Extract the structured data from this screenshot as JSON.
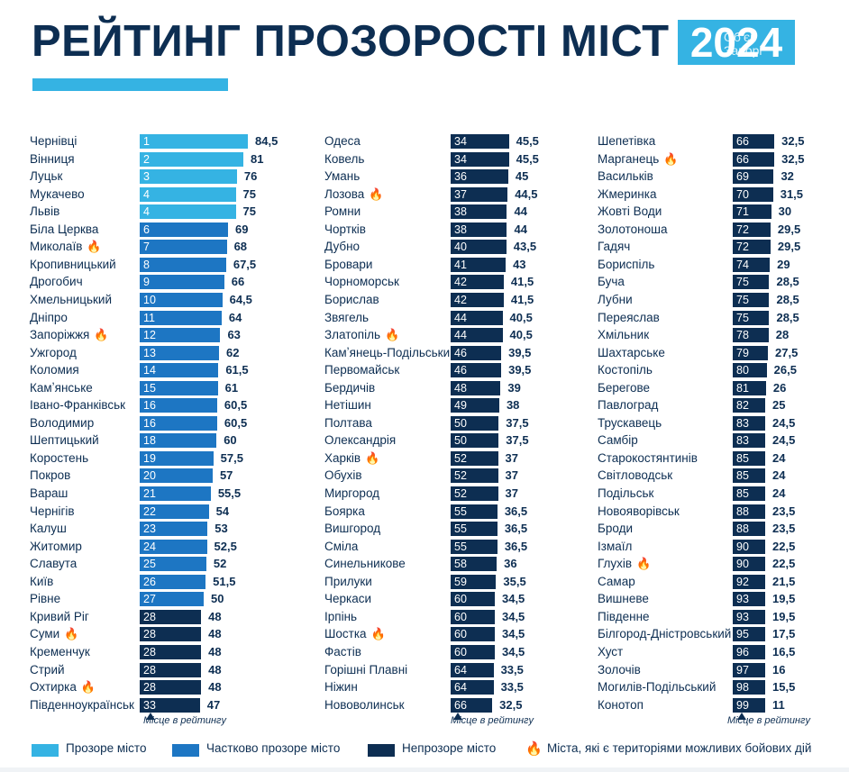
{
  "header": {
    "title": "РЕЙТИНГ ПРОЗОРОСТІ МІСТ",
    "year": "2024",
    "watermark_line1": "Обʼєк",
    "watermark_line2": "Запорі"
  },
  "colors": {
    "transparent": "#35b3e3",
    "partial": "#1d76c3",
    "opaque": "#0d2e52",
    "fire": "#f3a23a"
  },
  "axis_note": "Місце в рейтингу",
  "legend": {
    "transparent": "Прозоре місто",
    "partial": "Частково прозоре місто",
    "opaque": "Непрозоре місто",
    "fire": "Міста, які є територіями можливих бойових дій"
  },
  "chart_data": {
    "type": "bar",
    "value_max": 84.5,
    "columns": [
      [
        {
          "city": "Чернівці",
          "rank": 1,
          "score": "84,5",
          "value": 84.5,
          "cat": "transparent",
          "fire": false
        },
        {
          "city": "Вінниця",
          "rank": 2,
          "score": "81",
          "value": 81,
          "cat": "transparent",
          "fire": false
        },
        {
          "city": "Луцьк",
          "rank": 3,
          "score": "76",
          "value": 76,
          "cat": "transparent",
          "fire": false
        },
        {
          "city": "Мукачево",
          "rank": 4,
          "score": "75",
          "value": 75,
          "cat": "transparent",
          "fire": false
        },
        {
          "city": "Львів",
          "rank": 4,
          "score": "75",
          "value": 75,
          "cat": "transparent",
          "fire": false
        },
        {
          "city": "Біла Церква",
          "rank": 6,
          "score": "69",
          "value": 69,
          "cat": "partial",
          "fire": false
        },
        {
          "city": "Миколаїв",
          "rank": 7,
          "score": "68",
          "value": 68,
          "cat": "partial",
          "fire": true
        },
        {
          "city": "Кропивницький",
          "rank": 8,
          "score": "67,5",
          "value": 67.5,
          "cat": "partial",
          "fire": false
        },
        {
          "city": "Дрогобич",
          "rank": 9,
          "score": "66",
          "value": 66,
          "cat": "partial",
          "fire": false
        },
        {
          "city": "Хмельницький",
          "rank": 10,
          "score": "64,5",
          "value": 64.5,
          "cat": "partial",
          "fire": false
        },
        {
          "city": "Дніпро",
          "rank": 11,
          "score": "64",
          "value": 64,
          "cat": "partial",
          "fire": false
        },
        {
          "city": "Запоріжжя",
          "rank": 12,
          "score": "63",
          "value": 63,
          "cat": "partial",
          "fire": true
        },
        {
          "city": "Ужгород",
          "rank": 13,
          "score": "62",
          "value": 62,
          "cat": "partial",
          "fire": false
        },
        {
          "city": "Коломия",
          "rank": 14,
          "score": "61,5",
          "value": 61.5,
          "cat": "partial",
          "fire": false
        },
        {
          "city": "Камʼянське",
          "rank": 15,
          "score": "61",
          "value": 61,
          "cat": "partial",
          "fire": false
        },
        {
          "city": "Івано-Франківськ",
          "rank": 16,
          "score": "60,5",
          "value": 60.5,
          "cat": "partial",
          "fire": false
        },
        {
          "city": "Володимир",
          "rank": 16,
          "score": "60,5",
          "value": 60.5,
          "cat": "partial",
          "fire": false
        },
        {
          "city": "Шептицький",
          "rank": 18,
          "score": "60",
          "value": 60,
          "cat": "partial",
          "fire": false
        },
        {
          "city": "Коростень",
          "rank": 19,
          "score": "57,5",
          "value": 57.5,
          "cat": "partial",
          "fire": false
        },
        {
          "city": "Покров",
          "rank": 20,
          "score": "57",
          "value": 57,
          "cat": "partial",
          "fire": false
        },
        {
          "city": "Вараш",
          "rank": 21,
          "score": "55,5",
          "value": 55.5,
          "cat": "partial",
          "fire": false
        },
        {
          "city": "Чернігів",
          "rank": 22,
          "score": "54",
          "value": 54,
          "cat": "partial",
          "fire": false
        },
        {
          "city": "Калуш",
          "rank": 23,
          "score": "53",
          "value": 53,
          "cat": "partial",
          "fire": false
        },
        {
          "city": "Житомир",
          "rank": 24,
          "score": "52,5",
          "value": 52.5,
          "cat": "partial",
          "fire": false
        },
        {
          "city": "Славута",
          "rank": 25,
          "score": "52",
          "value": 52,
          "cat": "partial",
          "fire": false
        },
        {
          "city": "Київ",
          "rank": 26,
          "score": "51,5",
          "value": 51.5,
          "cat": "partial",
          "fire": false
        },
        {
          "city": "Рівне",
          "rank": 27,
          "score": "50",
          "value": 50,
          "cat": "partial",
          "fire": false
        },
        {
          "city": "Кривий Ріг",
          "rank": 28,
          "score": "48",
          "value": 48,
          "cat": "opaque",
          "fire": false
        },
        {
          "city": "Суми",
          "rank": 28,
          "score": "48",
          "value": 48,
          "cat": "opaque",
          "fire": true
        },
        {
          "city": "Кременчук",
          "rank": 28,
          "score": "48",
          "value": 48,
          "cat": "opaque",
          "fire": false
        },
        {
          "city": "Стрий",
          "rank": 28,
          "score": "48",
          "value": 48,
          "cat": "opaque",
          "fire": false
        },
        {
          "city": "Охтирка",
          "rank": 28,
          "score": "48",
          "value": 48,
          "cat": "opaque",
          "fire": true
        },
        {
          "city": "Південноукраїнськ",
          "rank": 33,
          "score": "47",
          "value": 47,
          "cat": "opaque",
          "fire": false
        }
      ],
      [
        {
          "city": "Одеса",
          "rank": 34,
          "score": "45,5",
          "value": 45.5,
          "cat": "opaque",
          "fire": false
        },
        {
          "city": "Ковель",
          "rank": 34,
          "score": "45,5",
          "value": 45.5,
          "cat": "opaque",
          "fire": false
        },
        {
          "city": "Умань",
          "rank": 36,
          "score": "45",
          "value": 45,
          "cat": "opaque",
          "fire": false
        },
        {
          "city": "Лозова",
          "rank": 37,
          "score": "44,5",
          "value": 44.5,
          "cat": "opaque",
          "fire": true
        },
        {
          "city": "Ромни",
          "rank": 38,
          "score": "44",
          "value": 44,
          "cat": "opaque",
          "fire": false
        },
        {
          "city": "Чортків",
          "rank": 38,
          "score": "44",
          "value": 44,
          "cat": "opaque",
          "fire": false
        },
        {
          "city": "Дубно",
          "rank": 40,
          "score": "43,5",
          "value": 43.5,
          "cat": "opaque",
          "fire": false
        },
        {
          "city": "Бровари",
          "rank": 41,
          "score": "43",
          "value": 43,
          "cat": "opaque",
          "fire": false
        },
        {
          "city": "Чорноморськ",
          "rank": 42,
          "score": "41,5",
          "value": 41.5,
          "cat": "opaque",
          "fire": false
        },
        {
          "city": "Борислав",
          "rank": 42,
          "score": "41,5",
          "value": 41.5,
          "cat": "opaque",
          "fire": false
        },
        {
          "city": "Звягель",
          "rank": 44,
          "score": "40,5",
          "value": 40.5,
          "cat": "opaque",
          "fire": false
        },
        {
          "city": "Златопіль",
          "rank": 44,
          "score": "40,5",
          "value": 40.5,
          "cat": "opaque",
          "fire": true
        },
        {
          "city": "Камʼянець-Подільський",
          "rank": 46,
          "score": "39,5",
          "value": 39.5,
          "cat": "opaque",
          "fire": false
        },
        {
          "city": "Первомайськ",
          "rank": 46,
          "score": "39,5",
          "value": 39.5,
          "cat": "opaque",
          "fire": false
        },
        {
          "city": "Бердичів",
          "rank": 48,
          "score": "39",
          "value": 39,
          "cat": "opaque",
          "fire": false
        },
        {
          "city": "Нетішин",
          "rank": 49,
          "score": "38",
          "value": 38,
          "cat": "opaque",
          "fire": false
        },
        {
          "city": "Полтава",
          "rank": 50,
          "score": "37,5",
          "value": 37.5,
          "cat": "opaque",
          "fire": false
        },
        {
          "city": "Олександрія",
          "rank": 50,
          "score": "37,5",
          "value": 37.5,
          "cat": "opaque",
          "fire": false
        },
        {
          "city": "Харків",
          "rank": 52,
          "score": "37",
          "value": 37,
          "cat": "opaque",
          "fire": true
        },
        {
          "city": "Обухів",
          "rank": 52,
          "score": "37",
          "value": 37,
          "cat": "opaque",
          "fire": false
        },
        {
          "city": "Миргород",
          "rank": 52,
          "score": "37",
          "value": 37,
          "cat": "opaque",
          "fire": false
        },
        {
          "city": "Боярка",
          "rank": 55,
          "score": "36,5",
          "value": 36.5,
          "cat": "opaque",
          "fire": false
        },
        {
          "city": "Вишгород",
          "rank": 55,
          "score": "36,5",
          "value": 36.5,
          "cat": "opaque",
          "fire": false
        },
        {
          "city": "Сміла",
          "rank": 55,
          "score": "36,5",
          "value": 36.5,
          "cat": "opaque",
          "fire": false
        },
        {
          "city": "Синельникове",
          "rank": 58,
          "score": "36",
          "value": 36,
          "cat": "opaque",
          "fire": false
        },
        {
          "city": "Прилуки",
          "rank": 59,
          "score": "35,5",
          "value": 35.5,
          "cat": "opaque",
          "fire": false
        },
        {
          "city": "Черкаси",
          "rank": 60,
          "score": "34,5",
          "value": 34.5,
          "cat": "opaque",
          "fire": false
        },
        {
          "city": "Ірпінь",
          "rank": 60,
          "score": "34,5",
          "value": 34.5,
          "cat": "opaque",
          "fire": false
        },
        {
          "city": "Шостка",
          "rank": 60,
          "score": "34,5",
          "value": 34.5,
          "cat": "opaque",
          "fire": true
        },
        {
          "city": "Фастів",
          "rank": 60,
          "score": "34,5",
          "value": 34.5,
          "cat": "opaque",
          "fire": false
        },
        {
          "city": "Горішні Плавні",
          "rank": 64,
          "score": "33,5",
          "value": 33.5,
          "cat": "opaque",
          "fire": false
        },
        {
          "city": "Ніжин",
          "rank": 64,
          "score": "33,5",
          "value": 33.5,
          "cat": "opaque",
          "fire": false
        },
        {
          "city": "Нововолинськ",
          "rank": 66,
          "score": "32,5",
          "value": 32.5,
          "cat": "opaque",
          "fire": false
        }
      ],
      [
        {
          "city": "Шепетівка",
          "rank": 66,
          "score": "32,5",
          "value": 32.5,
          "cat": "opaque",
          "fire": false
        },
        {
          "city": "Марганець",
          "rank": 66,
          "score": "32,5",
          "value": 32.5,
          "cat": "opaque",
          "fire": true
        },
        {
          "city": "Васильків",
          "rank": 69,
          "score": "32",
          "value": 32,
          "cat": "opaque",
          "fire": false
        },
        {
          "city": "Жмеринка",
          "rank": 70,
          "score": "31,5",
          "value": 31.5,
          "cat": "opaque",
          "fire": false
        },
        {
          "city": "Жовті Води",
          "rank": 71,
          "score": "30",
          "value": 30,
          "cat": "opaque",
          "fire": false
        },
        {
          "city": "Золотоноша",
          "rank": 72,
          "score": "29,5",
          "value": 29.5,
          "cat": "opaque",
          "fire": false
        },
        {
          "city": "Гадяч",
          "rank": 72,
          "score": "29,5",
          "value": 29.5,
          "cat": "opaque",
          "fire": false
        },
        {
          "city": "Бориспіль",
          "rank": 74,
          "score": "29",
          "value": 29,
          "cat": "opaque",
          "fire": false
        },
        {
          "city": "Буча",
          "rank": 75,
          "score": "28,5",
          "value": 28.5,
          "cat": "opaque",
          "fire": false
        },
        {
          "city": "Лубни",
          "rank": 75,
          "score": "28,5",
          "value": 28.5,
          "cat": "opaque",
          "fire": false
        },
        {
          "city": "Переяслав",
          "rank": 75,
          "score": "28,5",
          "value": 28.5,
          "cat": "opaque",
          "fire": false
        },
        {
          "city": "Хмільник",
          "rank": 78,
          "score": "28",
          "value": 28,
          "cat": "opaque",
          "fire": false
        },
        {
          "city": "Шахтарське",
          "rank": 79,
          "score": "27,5",
          "value": 27.5,
          "cat": "opaque",
          "fire": false
        },
        {
          "city": "Костопіль",
          "rank": 80,
          "score": "26,5",
          "value": 26.5,
          "cat": "opaque",
          "fire": false
        },
        {
          "city": "Берегове",
          "rank": 81,
          "score": "26",
          "value": 26,
          "cat": "opaque",
          "fire": false
        },
        {
          "city": "Павлоград",
          "rank": 82,
          "score": "25",
          "value": 25,
          "cat": "opaque",
          "fire": false
        },
        {
          "city": "Трускавець",
          "rank": 83,
          "score": "24,5",
          "value": 24.5,
          "cat": "opaque",
          "fire": false
        },
        {
          "city": "Самбір",
          "rank": 83,
          "score": "24,5",
          "value": 24.5,
          "cat": "opaque",
          "fire": false
        },
        {
          "city": "Старокостянтинів",
          "rank": 85,
          "score": "24",
          "value": 24,
          "cat": "opaque",
          "fire": false
        },
        {
          "city": "Світловодськ",
          "rank": 85,
          "score": "24",
          "value": 24,
          "cat": "opaque",
          "fire": false
        },
        {
          "city": "Подільськ",
          "rank": 85,
          "score": "24",
          "value": 24,
          "cat": "opaque",
          "fire": false
        },
        {
          "city": "Новояворівськ",
          "rank": 88,
          "score": "23,5",
          "value": 23.5,
          "cat": "opaque",
          "fire": false
        },
        {
          "city": "Броди",
          "rank": 88,
          "score": "23,5",
          "value": 23.5,
          "cat": "opaque",
          "fire": false
        },
        {
          "city": "Ізмаїл",
          "rank": 90,
          "score": "22,5",
          "value": 22.5,
          "cat": "opaque",
          "fire": false
        },
        {
          "city": "Глухів",
          "rank": 90,
          "score": "22,5",
          "value": 22.5,
          "cat": "opaque",
          "fire": true
        },
        {
          "city": "Самар",
          "rank": 92,
          "score": "21,5",
          "value": 21.5,
          "cat": "opaque",
          "fire": false
        },
        {
          "city": "Вишневе",
          "rank": 93,
          "score": "19,5",
          "value": 19.5,
          "cat": "opaque",
          "fire": false
        },
        {
          "city": "Південне",
          "rank": 93,
          "score": "19,5",
          "value": 19.5,
          "cat": "opaque",
          "fire": false
        },
        {
          "city": "Білгород-Дністровський",
          "rank": 95,
          "score": "17,5",
          "value": 17.5,
          "cat": "opaque",
          "fire": false
        },
        {
          "city": "Хуст",
          "rank": 96,
          "score": "16,5",
          "value": 16.5,
          "cat": "opaque",
          "fire": false
        },
        {
          "city": "Золочів",
          "rank": 97,
          "score": "16",
          "value": 16,
          "cat": "opaque",
          "fire": false
        },
        {
          "city": "Могилів-Подільський",
          "rank": 98,
          "score": "15,5",
          "value": 15.5,
          "cat": "opaque",
          "fire": false
        },
        {
          "city": "Конотоп",
          "rank": 99,
          "score": "11",
          "value": 11,
          "cat": "opaque",
          "fire": false
        }
      ]
    ]
  }
}
